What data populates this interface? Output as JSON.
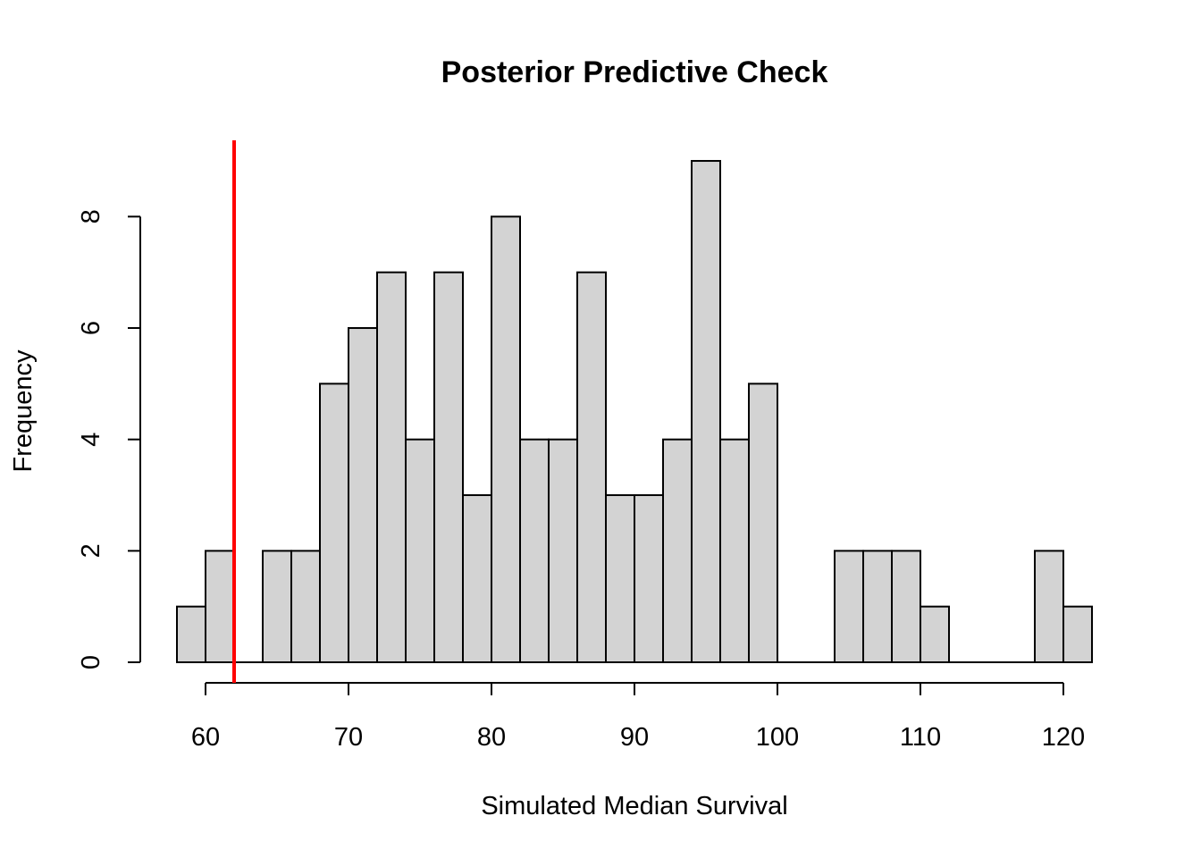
{
  "chart_data": {
    "type": "bar",
    "title": "Posterior Predictive Check",
    "xlabel": "Simulated Median Survival",
    "ylabel": "Frequency",
    "bins": [
      {
        "start": 58,
        "end": 60,
        "count": 1
      },
      {
        "start": 60,
        "end": 62,
        "count": 2
      },
      {
        "start": 62,
        "end": 64,
        "count": 0
      },
      {
        "start": 64,
        "end": 66,
        "count": 2
      },
      {
        "start": 66,
        "end": 68,
        "count": 2
      },
      {
        "start": 68,
        "end": 70,
        "count": 5
      },
      {
        "start": 70,
        "end": 72,
        "count": 6
      },
      {
        "start": 72,
        "end": 74,
        "count": 7
      },
      {
        "start": 74,
        "end": 76,
        "count": 4
      },
      {
        "start": 76,
        "end": 78,
        "count": 7
      },
      {
        "start": 78,
        "end": 80,
        "count": 3
      },
      {
        "start": 80,
        "end": 82,
        "count": 8
      },
      {
        "start": 82,
        "end": 84,
        "count": 4
      },
      {
        "start": 84,
        "end": 86,
        "count": 4
      },
      {
        "start": 86,
        "end": 88,
        "count": 7
      },
      {
        "start": 88,
        "end": 90,
        "count": 3
      },
      {
        "start": 90,
        "end": 92,
        "count": 3
      },
      {
        "start": 92,
        "end": 94,
        "count": 4
      },
      {
        "start": 94,
        "end": 96,
        "count": 9
      },
      {
        "start": 96,
        "end": 98,
        "count": 4
      },
      {
        "start": 98,
        "end": 100,
        "count": 5
      },
      {
        "start": 100,
        "end": 102,
        "count": 0
      },
      {
        "start": 102,
        "end": 104,
        "count": 0
      },
      {
        "start": 104,
        "end": 106,
        "count": 2
      },
      {
        "start": 106,
        "end": 108,
        "count": 2
      },
      {
        "start": 108,
        "end": 110,
        "count": 2
      },
      {
        "start": 110,
        "end": 112,
        "count": 1
      },
      {
        "start": 112,
        "end": 114,
        "count": 0
      },
      {
        "start": 114,
        "end": 116,
        "count": 0
      },
      {
        "start": 116,
        "end": 118,
        "count": 0
      },
      {
        "start": 118,
        "end": 120,
        "count": 2
      },
      {
        "start": 120,
        "end": 122,
        "count": 1
      }
    ],
    "xlim": [
      58,
      122
    ],
    "ylim": [
      0,
      9
    ],
    "x_ticks": [
      "60",
      "70",
      "80",
      "90",
      "100",
      "110",
      "120"
    ],
    "y_ticks": [
      "0",
      "2",
      "4",
      "6",
      "8"
    ],
    "reference_line": {
      "x": 62,
      "color": "#ff0000"
    },
    "bar_fill": "#d3d3d3",
    "bar_stroke": "#000000",
    "grid": false,
    "legend": "none"
  }
}
